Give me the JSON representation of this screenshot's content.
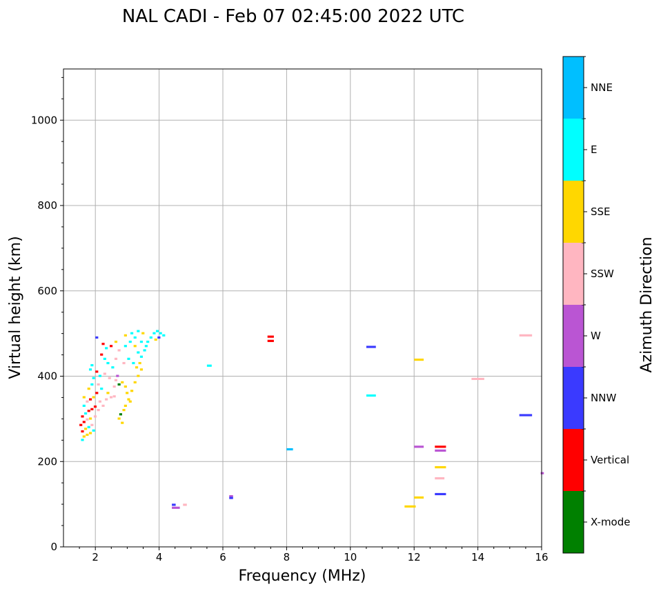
{
  "chart_data": {
    "type": "scatter",
    "title": "NAL CADI - Feb 07 02:45:00 2022 UTC",
    "xlabel": "Frequency (MHz)",
    "ylabel": "Virtual height (km)",
    "xlim": [
      1,
      16
    ],
    "ylim": [
      0,
      1120
    ],
    "xticks": [
      2,
      4,
      6,
      8,
      10,
      12,
      14,
      16
    ],
    "yticks": [
      0,
      200,
      400,
      600,
      800,
      1000
    ],
    "grid": true,
    "colorbar": {
      "label": "Azimuth Direction",
      "categories": [
        "X-mode",
        "Vertical",
        "NNW",
        "W",
        "SSW",
        "SSE",
        "E",
        "NNE"
      ],
      "colors": [
        "#008000",
        "#ff0000",
        "#3a3aff",
        "#ba55d3",
        "#ffb6c1",
        "#ffd700",
        "#00ffff",
        "#00bfff"
      ]
    },
    "point_format": [
      "frequency_MHz",
      "height_km",
      "direction_index",
      "freq_span_MHz"
    ],
    "points": [
      [
        1.55,
        250,
        6,
        0.09
      ],
      [
        1.6,
        258,
        5,
        0.09
      ],
      [
        1.7,
        262,
        5,
        0.09
      ],
      [
        1.8,
        266,
        5,
        0.09
      ],
      [
        1.9,
        272,
        6,
        0.09
      ],
      [
        1.55,
        270,
        1,
        0.09
      ],
      [
        1.65,
        276,
        5,
        0.09
      ],
      [
        1.75,
        280,
        6,
        0.09
      ],
      [
        1.85,
        285,
        4,
        0.09
      ],
      [
        1.5,
        285,
        1,
        0.09
      ],
      [
        1.6,
        292,
        1,
        0.09
      ],
      [
        1.7,
        298,
        4,
        0.09
      ],
      [
        1.8,
        300,
        5,
        0.09
      ],
      [
        1.95,
        305,
        4,
        0.09
      ],
      [
        1.55,
        305,
        1,
        0.09
      ],
      [
        1.65,
        312,
        6,
        0.09
      ],
      [
        1.75,
        318,
        1,
        0.09
      ],
      [
        1.85,
        322,
        1,
        0.09
      ],
      [
        1.95,
        328,
        1,
        0.09
      ],
      [
        2.05,
        320,
        4,
        0.09
      ],
      [
        1.6,
        330,
        6,
        0.09
      ],
      [
        1.7,
        340,
        4,
        0.09
      ],
      [
        1.8,
        345,
        1,
        0.09
      ],
      [
        1.9,
        350,
        5,
        0.09
      ],
      [
        2.1,
        340,
        4,
        0.09
      ],
      [
        2.2,
        330,
        4,
        0.09
      ],
      [
        2.3,
        345,
        4,
        0.09
      ],
      [
        2.0,
        360,
        1,
        0.09
      ],
      [
        1.75,
        370,
        5,
        0.09
      ],
      [
        1.85,
        380,
        6,
        0.09
      ],
      [
        2.05,
        380,
        4,
        0.09
      ],
      [
        2.15,
        370,
        6,
        0.09
      ],
      [
        2.35,
        360,
        5,
        0.09
      ],
      [
        2.45,
        350,
        4,
        0.09
      ],
      [
        2.55,
        352,
        4,
        0.09
      ],
      [
        1.9,
        395,
        6,
        0.09
      ],
      [
        2.0,
        410,
        1,
        0.09
      ],
      [
        2.1,
        400,
        6,
        0.09
      ],
      [
        2.25,
        405,
        4,
        0.09
      ],
      [
        2.4,
        395,
        4,
        0.09
      ],
      [
        2.6,
        390,
        4,
        0.09
      ],
      [
        2.7,
        380,
        0,
        0.09
      ],
      [
        2.8,
        385,
        5,
        0.09
      ],
      [
        2.9,
        375,
        5,
        0.09
      ],
      [
        2.95,
        360,
        5,
        0.09
      ],
      [
        3.0,
        345,
        5,
        0.09
      ],
      [
        2.9,
        330,
        5,
        0.09
      ],
      [
        2.85,
        320,
        5,
        0.09
      ],
      [
        2.75,
        310,
        0,
        0.09
      ],
      [
        2.7,
        300,
        5,
        0.09
      ],
      [
        2.8,
        290,
        5,
        0.09
      ],
      [
        3.05,
        340,
        5,
        0.09
      ],
      [
        3.1,
        365,
        5,
        0.09
      ],
      [
        3.2,
        385,
        5,
        0.09
      ],
      [
        3.3,
        400,
        5,
        0.09
      ],
      [
        3.25,
        420,
        5,
        0.09
      ],
      [
        3.15,
        430,
        6,
        0.09
      ],
      [
        3.0,
        440,
        6,
        0.09
      ],
      [
        2.85,
        430,
        4,
        0.09
      ],
      [
        2.6,
        440,
        4,
        0.09
      ],
      [
        2.5,
        420,
        6,
        0.09
      ],
      [
        2.35,
        430,
        6,
        0.09
      ],
      [
        2.25,
        440,
        6,
        0.09
      ],
      [
        2.15,
        450,
        1,
        0.09
      ],
      [
        2.3,
        465,
        6,
        0.09
      ],
      [
        2.45,
        470,
        1,
        0.09
      ],
      [
        2.6,
        480,
        5,
        0.09
      ],
      [
        2.7,
        460,
        4,
        0.09
      ],
      [
        2.9,
        470,
        6,
        0.09
      ],
      [
        3.05,
        480,
        6,
        0.09
      ],
      [
        3.2,
        470,
        5,
        0.09
      ],
      [
        3.3,
        455,
        6,
        0.09
      ],
      [
        3.4,
        445,
        6,
        0.09
      ],
      [
        3.5,
        460,
        6,
        0.09
      ],
      [
        3.6,
        480,
        6,
        0.09
      ],
      [
        3.7,
        490,
        6,
        0.09
      ],
      [
        3.8,
        500,
        6,
        0.09
      ],
      [
        3.9,
        505,
        6,
        0.09
      ],
      [
        4.0,
        500,
        6,
        0.09
      ],
      [
        4.1,
        495,
        6,
        0.09
      ],
      [
        3.95,
        490,
        2,
        0.09
      ],
      [
        3.85,
        485,
        5,
        0.09
      ],
      [
        3.45,
        500,
        5,
        0.09
      ],
      [
        3.3,
        505,
        6,
        0.09
      ],
      [
        3.1,
        500,
        6,
        0.09
      ],
      [
        3.2,
        490,
        6,
        0.09
      ],
      [
        3.4,
        480,
        6,
        0.09
      ],
      [
        3.55,
        470,
        6,
        0.09
      ],
      [
        2.9,
        495,
        5,
        0.09
      ],
      [
        2.0,
        490,
        2,
        0.09
      ],
      [
        2.2,
        475,
        1,
        0.09
      ],
      [
        1.85,
        425,
        6,
        0.09
      ],
      [
        1.8,
        415,
        6,
        0.09
      ],
      [
        3.35,
        430,
        5,
        0.09
      ],
      [
        3.4,
        415,
        5,
        0.09
      ],
      [
        1.6,
        350,
        5,
        0.09
      ],
      [
        2.55,
        375,
        4,
        0.09
      ],
      [
        2.65,
        400,
        3,
        0.09
      ],
      [
        7.4,
        492,
        1,
        0.2
      ],
      [
        7.4,
        482,
        1,
        0.2
      ],
      [
        5.5,
        424,
        6,
        0.15
      ],
      [
        8.0,
        228,
        7,
        0.2
      ],
      [
        10.5,
        468,
        2,
        0.3
      ],
      [
        10.5,
        354,
        6,
        0.3
      ],
      [
        12.0,
        438,
        5,
        0.3
      ],
      [
        12.0,
        234,
        3,
        0.3
      ],
      [
        12.0,
        115,
        5,
        0.3
      ],
      [
        11.7,
        94,
        5,
        0.35
      ],
      [
        12.65,
        234,
        1,
        0.35
      ],
      [
        12.65,
        225,
        3,
        0.35
      ],
      [
        12.65,
        186,
        5,
        0.35
      ],
      [
        12.65,
        160,
        4,
        0.3
      ],
      [
        12.65,
        123,
        2,
        0.35
      ],
      [
        13.8,
        393,
        4,
        0.4
      ],
      [
        15.3,
        495,
        4,
        0.4
      ],
      [
        15.3,
        308,
        2,
        0.4
      ],
      [
        15.97,
        172,
        3,
        0.1
      ],
      [
        4.4,
        91,
        3,
        0.25
      ],
      [
        4.4,
        98,
        2,
        0.12
      ],
      [
        4.75,
        98,
        4,
        0.12
      ],
      [
        6.2,
        118,
        3,
        0.12
      ],
      [
        6.2,
        114,
        2,
        0.12
      ]
    ]
  }
}
